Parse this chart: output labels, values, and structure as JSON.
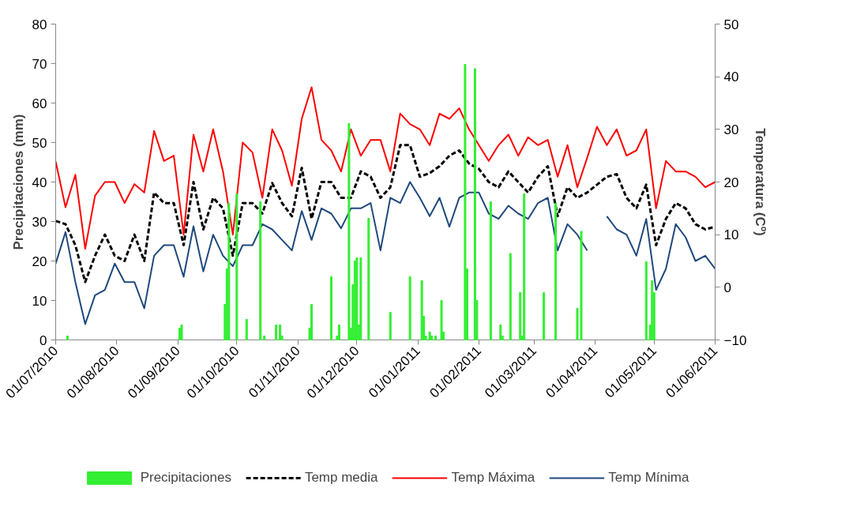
{
  "chart_data": {
    "type": "line",
    "ylabel": "Precipitaciones (mm)",
    "y2label": "Temperatura (Cº)",
    "legend": "bottom",
    "xlim": [
      "2010-07-01",
      "2011-06-01"
    ],
    "xticks": [
      {
        "value": "2010-07-01",
        "label": "01/07/2010"
      },
      {
        "value": "2010-08-01",
        "label": "01/08/2010"
      },
      {
        "value": "2010-09-01",
        "label": "01/09/2010"
      },
      {
        "value": "2010-10-01",
        "label": "01/10/2010"
      },
      {
        "value": "2010-11-01",
        "label": "01/11/2010"
      },
      {
        "value": "2010-12-01",
        "label": "01/12/2010"
      },
      {
        "value": "2011-01-01",
        "label": "01/01/2011"
      },
      {
        "value": "2011-02-01",
        "label": "01/02/2011"
      },
      {
        "value": "2011-03-01",
        "label": "01/03/2011"
      },
      {
        "value": "2011-04-01",
        "label": "01/04/2011"
      },
      {
        "value": "2011-05-01",
        "label": "01/05/2011"
      },
      {
        "value": "2011-06-01",
        "label": "01/06/2011"
      }
    ],
    "ylim": [
      0,
      80
    ],
    "yticks": [
      0,
      10,
      20,
      30,
      40,
      50,
      60,
      70,
      80
    ],
    "y2lim": [
      -10,
      50
    ],
    "y2ticks": [
      -10,
      0,
      10,
      20,
      30,
      40,
      50
    ],
    "x": [
      "2010-07-01",
      "2010-07-06",
      "2010-07-11",
      "2010-07-16",
      "2010-07-21",
      "2010-07-26",
      "2010-07-31",
      "2010-08-05",
      "2010-08-10",
      "2010-08-15",
      "2010-08-20",
      "2010-08-25",
      "2010-08-30",
      "2010-09-04",
      "2010-09-09",
      "2010-09-14",
      "2010-09-19",
      "2010-09-24",
      "2010-09-29",
      "2010-10-04",
      "2010-10-09",
      "2010-10-14",
      "2010-10-19",
      "2010-10-24",
      "2010-10-29",
      "2010-11-03",
      "2010-11-08",
      "2010-11-13",
      "2010-11-18",
      "2010-11-23",
      "2010-11-28",
      "2010-12-03",
      "2010-12-08",
      "2010-12-13",
      "2010-12-18",
      "2010-12-23",
      "2010-12-28",
      "2011-01-02",
      "2011-01-07",
      "2011-01-12",
      "2011-01-17",
      "2011-01-22",
      "2011-01-27",
      "2011-02-01",
      "2011-02-06",
      "2011-02-11",
      "2011-02-16",
      "2011-02-21",
      "2011-02-26",
      "2011-03-03",
      "2011-03-08",
      "2011-03-13",
      "2011-03-18",
      "2011-03-23",
      "2011-03-28",
      "2011-04-02",
      "2011-04-07",
      "2011-04-12",
      "2011-04-17",
      "2011-04-22",
      "2011-04-27",
      "2011-05-02",
      "2011-05-07",
      "2011-05-12",
      "2011-05-17",
      "2011-05-22",
      "2011-05-27",
      "2011-06-01"
    ],
    "series": [
      {
        "name": "Precipitaciones",
        "type": "bar",
        "color": "#33ee33",
        "x": [
          "2010-07-07",
          "2010-09-02",
          "2010-09-03",
          "2010-09-25",
          "2010-09-26",
          "2010-09-27",
          "2010-10-01",
          "2010-10-06",
          "2010-10-13",
          "2010-10-15",
          "2010-10-21",
          "2010-10-23",
          "2010-10-24",
          "2010-11-07",
          "2010-11-08",
          "2010-11-18",
          "2010-11-21",
          "2010-11-22",
          "2010-11-27",
          "2010-11-28",
          "2010-11-29",
          "2010-11-30",
          "2010-12-01",
          "2010-12-02",
          "2010-12-03",
          "2010-12-07",
          "2010-12-18",
          "2010-12-28",
          "2011-01-03",
          "2011-01-04",
          "2011-01-05",
          "2011-01-07",
          "2011-01-08",
          "2011-01-10",
          "2011-01-13",
          "2011-01-14",
          "2011-01-25",
          "2011-01-26",
          "2011-01-30",
          "2011-01-31",
          "2011-02-07",
          "2011-02-12",
          "2011-02-13",
          "2011-02-17",
          "2011-02-22",
          "2011-02-23",
          "2011-02-24",
          "2011-03-06",
          "2011-03-12",
          "2011-03-23",
          "2011-03-25",
          "2011-04-27",
          "2011-04-29",
          "2011-04-30",
          "2011-05-01"
        ],
        "values": [
          1,
          3,
          3.8,
          9,
          18,
          34.6,
          37,
          5.2,
          35,
          1,
          3.8,
          3.8,
          1,
          3,
          9,
          16,
          1,
          3.8,
          54.8,
          3,
          14,
          20,
          20.8,
          3.8,
          20.8,
          30.8,
          7,
          16,
          15,
          6,
          1,
          2,
          1,
          1,
          10,
          2,
          69.8,
          18,
          68.7,
          10,
          35,
          3.8,
          1,
          21.9,
          12,
          1,
          37,
          12,
          34.6,
          8,
          27.5,
          19.8,
          3.8,
          15,
          12
        ]
      },
      {
        "name": "Temp media",
        "axis": "y2",
        "color": "#000000",
        "line_style": "dashed",
        "values": [
          12.6,
          12,
          8,
          1,
          6,
          10,
          6,
          5,
          10,
          5,
          18,
          16,
          16,
          8,
          20,
          11,
          17,
          15,
          6,
          16,
          16,
          14,
          19.8,
          16,
          13.5,
          22.7,
          13,
          20,
          20,
          17,
          17,
          22,
          21,
          17,
          19,
          27,
          27,
          21,
          21.7,
          23,
          25,
          26,
          23.5,
          22.5,
          20,
          19,
          22,
          20,
          18,
          21,
          23,
          13.5,
          19,
          17,
          18,
          19.5,
          21,
          21.5,
          17,
          15,
          19.5,
          8,
          13,
          16,
          15,
          12,
          11,
          11.5
        ]
      },
      {
        "name": "Temp Máxima",
        "axis": "y2",
        "color": "#ff0000",
        "line_style": "solid",
        "values": [
          23.9,
          15.2,
          21.4,
          7.3,
          17.4,
          20,
          20,
          16,
          19.6,
          18,
          29.7,
          24,
          25,
          10,
          29,
          22,
          30,
          22,
          10,
          27.5,
          25.6,
          17,
          30,
          26,
          19.3,
          32,
          38,
          28,
          26,
          22,
          30,
          25,
          28,
          28,
          22,
          33,
          31,
          30,
          27,
          33,
          32,
          34,
          30,
          27,
          24,
          27,
          29,
          25,
          28.5,
          27,
          28,
          21,
          27,
          19,
          24.6,
          30.5,
          27,
          30,
          25,
          26,
          30,
          15,
          24,
          22,
          22,
          21,
          19,
          20
        ]
      },
      {
        "name": "Temp Mínima",
        "axis": "y2",
        "color": "#1f497d",
        "line_style": "solid",
        "values": [
          4.5,
          10.5,
          1,
          -7,
          -1.5,
          -0.5,
          4.5,
          1,
          1,
          -4,
          6,
          8,
          8,
          2,
          11.6,
          3,
          10,
          6,
          4,
          8,
          8,
          12,
          11,
          9,
          7,
          14.5,
          9,
          15,
          14,
          11.2,
          15,
          15,
          16,
          7,
          17,
          16,
          20,
          17,
          13.5,
          17,
          11.5,
          17,
          18,
          18,
          14,
          13,
          15.5,
          14,
          13,
          16,
          17,
          7,
          12,
          10,
          7,
          null,
          13.5,
          11,
          10,
          6,
          13,
          -0.5,
          3.5,
          12,
          9.5,
          5,
          6,
          3.5
        ]
      }
    ]
  }
}
